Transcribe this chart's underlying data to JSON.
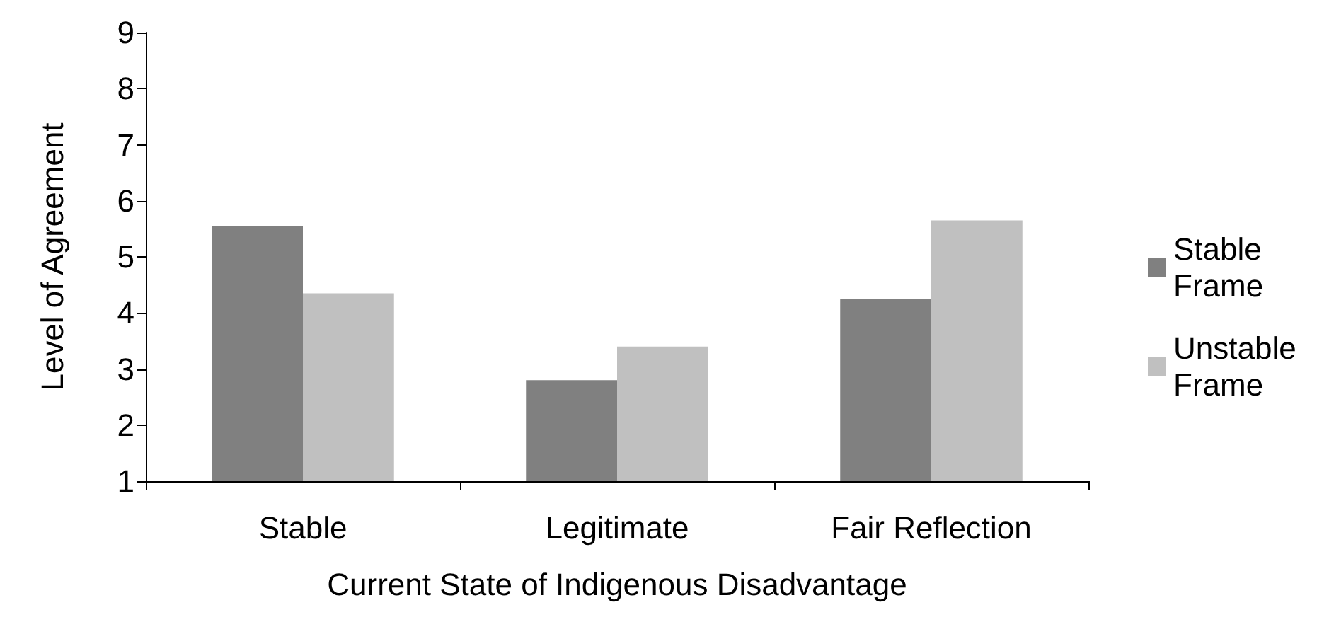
{
  "chart_data": {
    "type": "bar",
    "xlabel": "Current State of Indigenous Disadvantage",
    "ylabel": "Level of Agreement",
    "categories": [
      "Stable",
      "Legitimate",
      "Fair Reflection"
    ],
    "series": [
      {
        "name": "Stable Frame",
        "color": "#808080",
        "values": [
          5.55,
          2.8,
          4.25
        ]
      },
      {
        "name": "Unstable Frame",
        "color": "#c0c0c0",
        "values": [
          4.35,
          3.4,
          5.65
        ]
      }
    ],
    "ylim": [
      1,
      9
    ],
    "yticks": [
      1,
      2,
      3,
      4,
      5,
      6,
      7,
      8,
      9
    ],
    "grid": false,
    "legend": "right"
  }
}
